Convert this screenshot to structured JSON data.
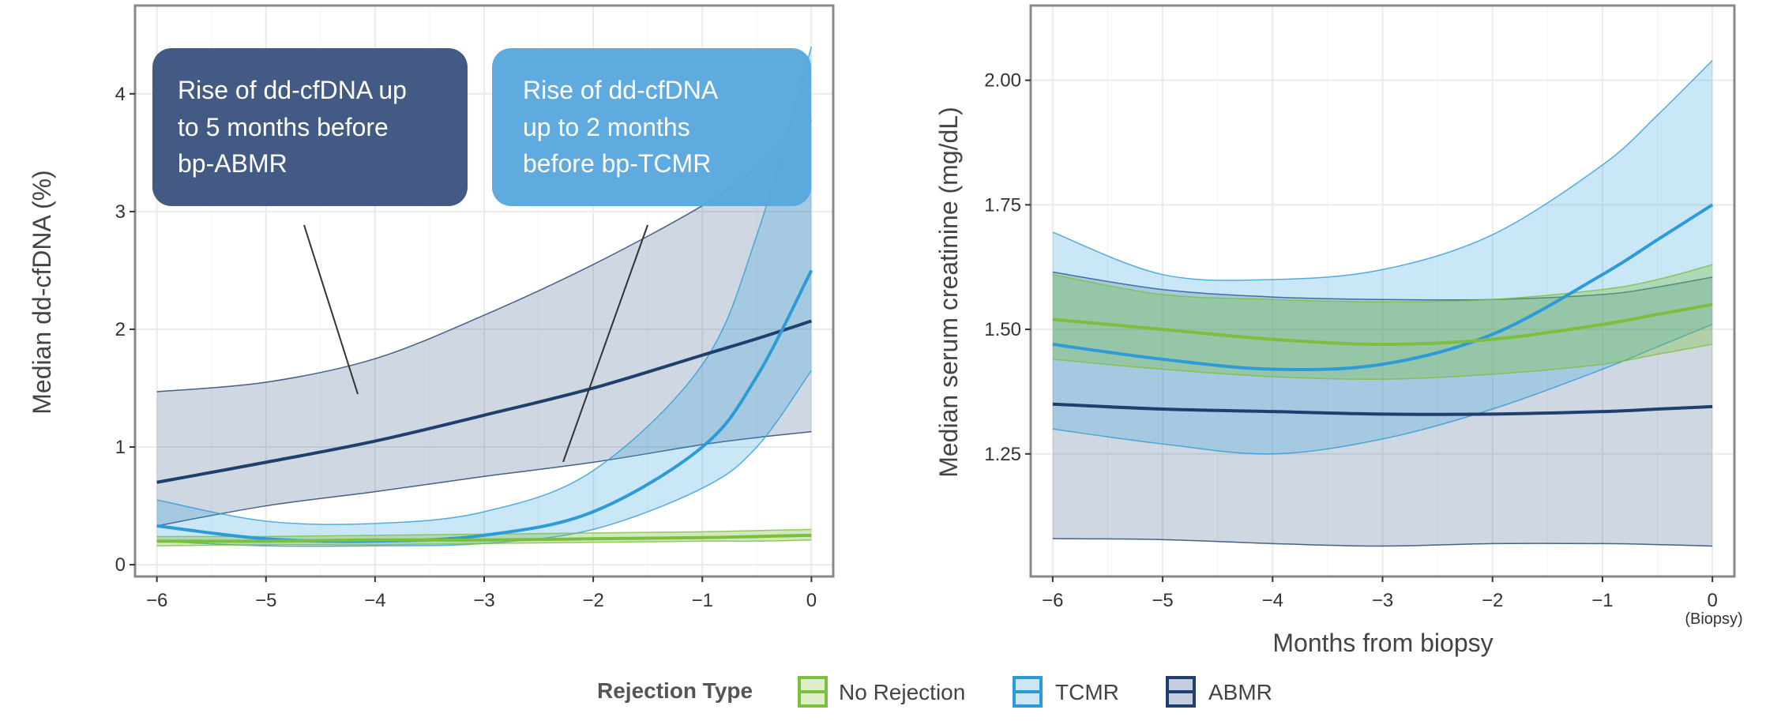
{
  "colors": {
    "No Rejection": "#7cbf3f",
    "TCMR": "#2d9bd8",
    "ABMR": "#1f3f6e"
  },
  "legend": {
    "title": "Rejection Type",
    "items": [
      "No Rejection",
      "TCMR",
      "ABMR"
    ],
    "placement": "bottom"
  },
  "annotations": [
    {
      "lines": [
        "Rise of dd-cfDNA up",
        "to 5 months before",
        "bp-ABMR"
      ],
      "color": "#435a84"
    },
    {
      "lines": [
        "Rise of dd-cfDNA",
        "up to 2 months",
        "before bp-TCMR"
      ],
      "color": "#5aa7de"
    }
  ],
  "chart_data": [
    {
      "type": "line",
      "ylabel": "Median dd-cfDNA (%)",
      "xlabel": "",
      "xlim": [
        -6.2,
        0.2
      ],
      "ylim": [
        -0.1,
        4.75
      ],
      "xticks": [
        "-6",
        "-5",
        "-4",
        "-3",
        "-2",
        "-1",
        "0"
      ],
      "yticks": [
        "0",
        "1",
        "2",
        "3",
        "4"
      ],
      "grid": true,
      "x": [
        -6,
        -5,
        -4,
        -3,
        -2,
        -1,
        -0.5,
        0
      ],
      "series": [
        {
          "name": "ABMR",
          "median": [
            0.7,
            0.87,
            1.05,
            1.27,
            1.5,
            1.78,
            1.92,
            2.07
          ],
          "upper": [
            1.47,
            1.55,
            1.75,
            2.12,
            2.55,
            3.05,
            3.38,
            3.78
          ],
          "lower": [
            0.33,
            0.5,
            0.62,
            0.75,
            0.87,
            1.02,
            1.08,
            1.13
          ]
        },
        {
          "name": "TCMR",
          "median": [
            0.33,
            0.22,
            0.2,
            0.25,
            0.45,
            1.0,
            1.6,
            2.5
          ],
          "upper": [
            0.55,
            0.37,
            0.35,
            0.45,
            0.8,
            1.7,
            2.8,
            4.4
          ],
          "lower": [
            0.2,
            0.16,
            0.16,
            0.18,
            0.3,
            0.65,
            1.0,
            1.65
          ]
        },
        {
          "name": "No Rejection",
          "median": [
            0.2,
            0.2,
            0.21,
            0.21,
            0.22,
            0.23,
            0.24,
            0.25
          ],
          "upper": [
            0.24,
            0.24,
            0.25,
            0.26,
            0.27,
            0.28,
            0.29,
            0.3
          ],
          "lower": [
            0.16,
            0.17,
            0.17,
            0.18,
            0.19,
            0.2,
            0.2,
            0.21
          ]
        }
      ]
    },
    {
      "type": "line",
      "ylabel": "Median serum creatinine (mg/dL)",
      "xlabel": "Months from biopsy",
      "xlim": [
        -6.2,
        0.2
      ],
      "ylim": [
        1.004,
        2.15
      ],
      "xticks": [
        "-6",
        "-5",
        "-4",
        "-3",
        "-2",
        "-1",
        "0"
      ],
      "xtick_note": "(Biopsy)",
      "yticks": [
        "1.25",
        "1.50",
        "1.75",
        "2.00"
      ],
      "grid": true,
      "x": [
        -6,
        -5,
        -4,
        -3,
        -2,
        -1,
        -0.5,
        0
      ],
      "series": [
        {
          "name": "ABMR",
          "median": [
            1.35,
            1.34,
            1.335,
            1.33,
            1.33,
            1.335,
            1.34,
            1.345
          ],
          "upper": [
            1.615,
            1.58,
            1.565,
            1.56,
            1.56,
            1.57,
            1.585,
            1.605
          ],
          "lower": [
            1.08,
            1.078,
            1.07,
            1.065,
            1.07,
            1.07,
            1.068,
            1.065
          ]
        },
        {
          "name": "TCMR",
          "median": [
            1.47,
            1.44,
            1.42,
            1.43,
            1.49,
            1.61,
            1.68,
            1.75
          ],
          "upper": [
            1.695,
            1.61,
            1.6,
            1.62,
            1.69,
            1.83,
            1.93,
            2.04
          ],
          "lower": [
            1.3,
            1.27,
            1.25,
            1.28,
            1.34,
            1.42,
            1.465,
            1.51
          ]
        },
        {
          "name": "No Rejection",
          "median": [
            1.52,
            1.5,
            1.48,
            1.47,
            1.48,
            1.51,
            1.53,
            1.55
          ],
          "upper": [
            1.61,
            1.57,
            1.56,
            1.555,
            1.56,
            1.58,
            1.6,
            1.63
          ],
          "lower": [
            1.44,
            1.42,
            1.405,
            1.4,
            1.41,
            1.43,
            1.45,
            1.47
          ]
        }
      ]
    }
  ]
}
